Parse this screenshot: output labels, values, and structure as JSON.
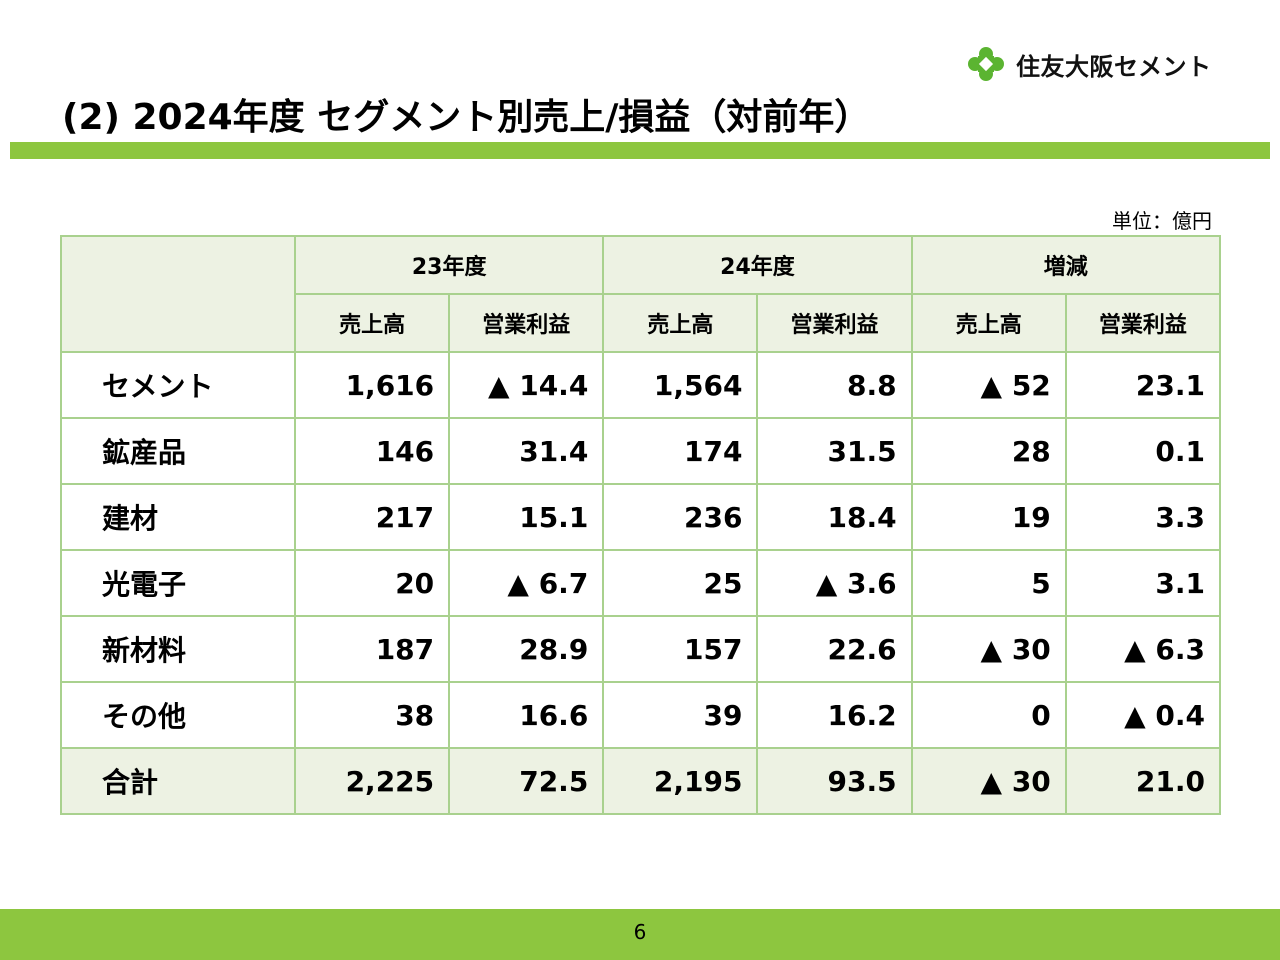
{
  "header": {
    "company_name": "住友大阪セメント",
    "logo_icon": "company-logo-icon",
    "title": "(2) 2024年度 セグメント別売上/損益（対前年）",
    "accent_color": "#8dc63f"
  },
  "unit_label": "単位：億円",
  "table": {
    "groups": [
      "23年度",
      "24年度",
      "増減"
    ],
    "subheaders": [
      "売上高",
      "営業利益",
      "売上高",
      "営業利益",
      "売上高",
      "営業利益"
    ],
    "rows": [
      {
        "name": "セメント",
        "values": [
          "1,616",
          "▲ 14.4",
          "1,564",
          "8.8",
          "▲ 52",
          "23.1"
        ]
      },
      {
        "name": "鉱産品",
        "values": [
          "146",
          "31.4",
          "174",
          "31.5",
          "28",
          "0.1"
        ]
      },
      {
        "name": "建材",
        "values": [
          "217",
          "15.1",
          "236",
          "18.4",
          "19",
          "3.3"
        ]
      },
      {
        "name": "光電子",
        "values": [
          "20",
          "▲ 6.7",
          "25",
          "▲ 3.6",
          "5",
          "3.1"
        ]
      },
      {
        "name": "新材料",
        "values": [
          "187",
          "28.9",
          "157",
          "22.6",
          "▲ 30",
          "▲ 6.3"
        ]
      },
      {
        "name": "その他",
        "values": [
          "38",
          "16.6",
          "39",
          "16.2",
          "0",
          "▲ 0.4"
        ]
      }
    ],
    "total": {
      "name": "合計",
      "values": [
        "2,225",
        "72.5",
        "2,195",
        "93.5",
        "▲ 30",
        "21.0"
      ]
    },
    "header_bg": "#edf2e3",
    "border_color": "#a9d18e"
  },
  "footer": {
    "page_number": "6"
  }
}
